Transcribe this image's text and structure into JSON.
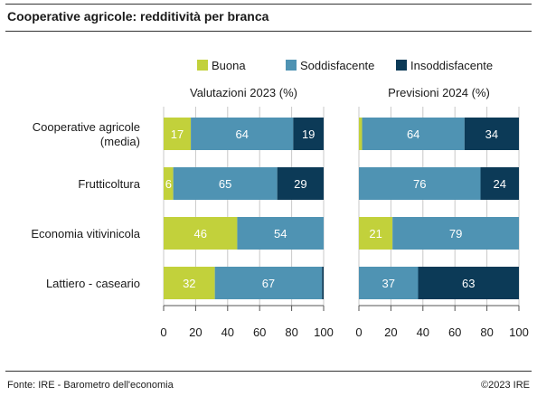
{
  "title": "Cooperative agricole: redditività per branca",
  "footer": {
    "source": "Fonte: IRE - Barometro dell'economia",
    "copyright": "©2023 IRE"
  },
  "colors": {
    "Buona": "#c2d13b",
    "Soddisfacente": "#4f93b3",
    "Insoddisfacente": "#0c3a57",
    "grid": "#c8c8c8"
  },
  "chart_data": {
    "type": "bar",
    "orientation": "horizontal",
    "stacked": true,
    "legend": [
      {
        "name": "Buona",
        "color": "#c2d13b"
      },
      {
        "name": "Soddisfacente",
        "color": "#4f93b3"
      },
      {
        "name": "Insoddisfacente",
        "color": "#0c3a57"
      }
    ],
    "legend_placement": "top-right",
    "categories": [
      [
        "Cooperative agricole",
        "(media)"
      ],
      [
        "Frutticoltura"
      ],
      [
        "Economia vitivinicola"
      ],
      [
        "Lattiero - caseario"
      ]
    ],
    "panels": [
      {
        "title": "Valutazioni 2023 (%)",
        "xlim": [
          0,
          100
        ],
        "xticks": [
          0,
          20,
          40,
          60,
          80,
          100
        ],
        "series": [
          {
            "name": "Buona",
            "values": [
              17,
              6,
              46,
              32
            ],
            "labels": [
              "17",
              "6",
              "46",
              "32"
            ]
          },
          {
            "name": "Soddisfacente",
            "values": [
              64,
              65,
              54,
              67
            ],
            "labels": [
              "64",
              "65",
              "54",
              "67"
            ]
          },
          {
            "name": "Insoddisfacente",
            "values": [
              19,
              29,
              0,
              1
            ],
            "labels": [
              "19",
              "29",
              "",
              ""
            ]
          }
        ]
      },
      {
        "title": "Previsioni 2024 (%)",
        "xlim": [
          0,
          100
        ],
        "xticks": [
          0,
          20,
          40,
          60,
          80,
          100
        ],
        "series": [
          {
            "name": "Buona",
            "values": [
              2,
              0,
              21,
              0
            ],
            "labels": [
              "",
              "",
              "21",
              ""
            ]
          },
          {
            "name": "Soddisfacente",
            "values": [
              64,
              76,
              79,
              37
            ],
            "labels": [
              "64",
              "76",
              "79",
              "37"
            ]
          },
          {
            "name": "Insoddisfacente",
            "values": [
              34,
              24,
              0,
              63
            ],
            "labels": [
              "34",
              "24",
              "",
              "63"
            ]
          }
        ]
      }
    ],
    "grid": true
  }
}
